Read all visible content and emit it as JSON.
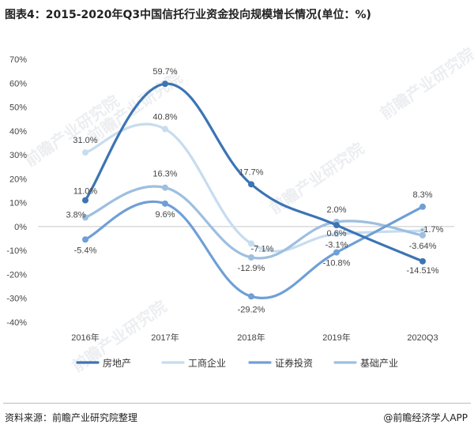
{
  "title": "图表4：2015-2020年Q3中国信托行业资金投向规模增长情况(单位：%)",
  "footer": {
    "source": "资料来源：前瞻产业研究院整理",
    "brand": "@前瞻经济学人APP"
  },
  "watermark": "前瞻产业研究院",
  "colors": {
    "房地产": "#3c74b4",
    "工商企业": "#c7dcef",
    "证券投资": "#6f9fd6",
    "基础产业": "#9dbfe0",
    "axis": "#999999",
    "text": "#444444"
  },
  "chart_data": {
    "type": "line",
    "smooth": true,
    "categories": [
      "2016年",
      "2017年",
      "2018年",
      "2019年",
      "2020Q3"
    ],
    "ylim": [
      -40,
      70
    ],
    "yticks": [
      "-40%",
      "-30%",
      "-20%",
      "-10%",
      "0%",
      "10%",
      "20%",
      "30%",
      "40%",
      "50%",
      "60%",
      "70%"
    ],
    "legend_position": "bottom",
    "series": [
      {
        "name": "房地产",
        "values": [
          11.0,
          59.7,
          17.7,
          0.6,
          -14.51
        ],
        "labels": [
          "11.0%",
          "59.7%",
          "17.7%",
          "0.6%",
          "-14.51%"
        ]
      },
      {
        "name": "工商企业",
        "values": [
          31.0,
          40.8,
          -7.1,
          -3.1,
          -1.7
        ],
        "labels": [
          "31.0%",
          "40.8%",
          "-7.1%",
          "-3.1%",
          "-1.7%"
        ]
      },
      {
        "name": "证券投资",
        "values": [
          -5.4,
          9.6,
          -29.2,
          -10.8,
          8.3
        ],
        "labels": [
          "-5.4%",
          "9.6%",
          "-29.2%",
          "-10.8%",
          "8.3%"
        ]
      },
      {
        "name": "基础产业",
        "values": [
          3.8,
          16.3,
          -12.9,
          2.0,
          -3.64
        ],
        "labels": [
          "3.8%",
          "16.3%",
          "-12.9%",
          "2.0%",
          "-3.64%"
        ]
      }
    ]
  }
}
